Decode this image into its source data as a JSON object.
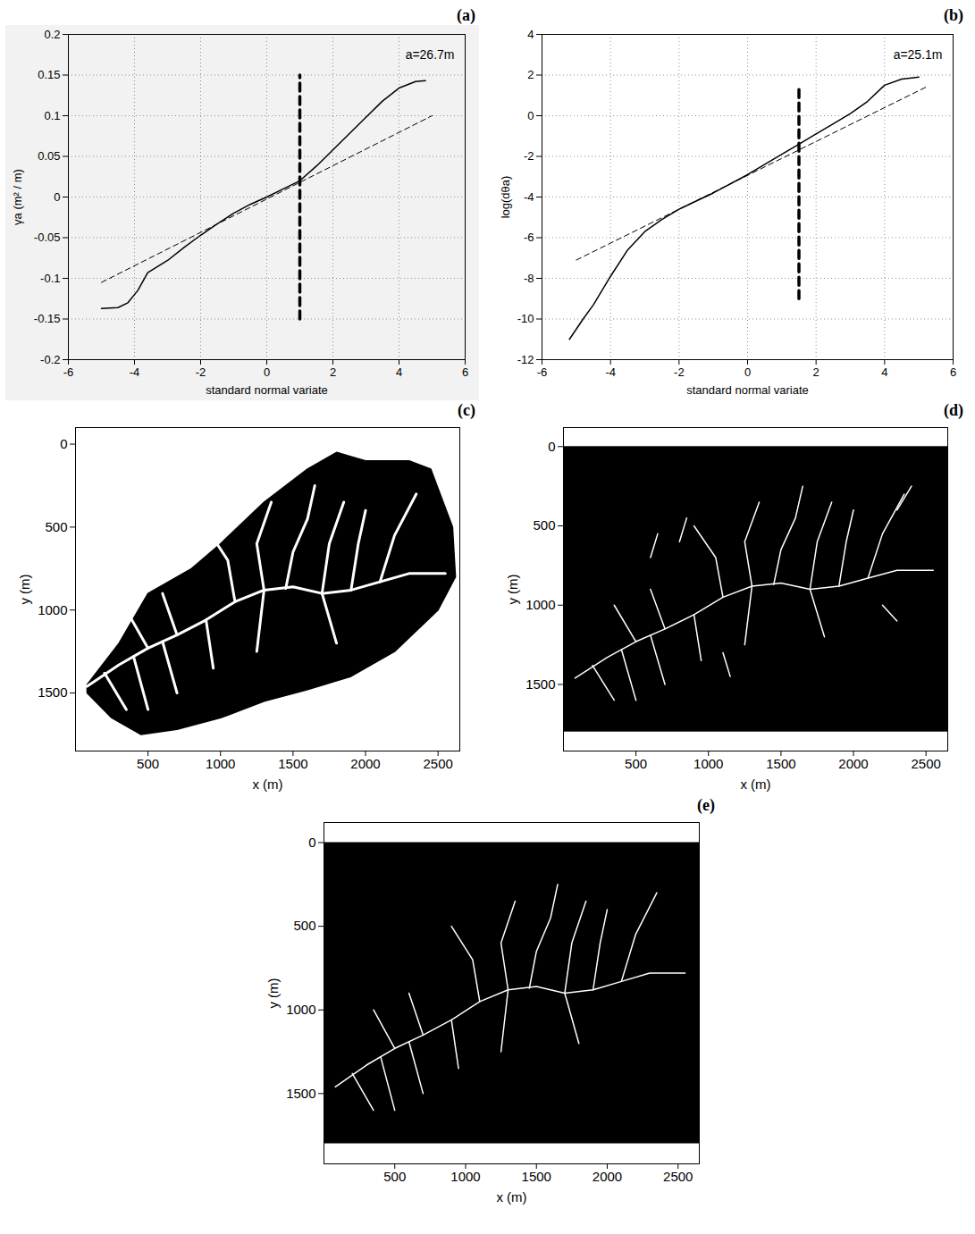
{
  "chart_data": [
    {
      "type": "line",
      "title": "(a)",
      "xlabel": "standard normal variate",
      "ylabel": "γa (m² / m)",
      "annotation": "a=26.7m",
      "grid": true,
      "xlim": [
        -6,
        6
      ],
      "xticks": [
        -6,
        -4,
        -2,
        0,
        2,
        4,
        6
      ],
      "ylim": [
        -0.2,
        0.2
      ],
      "yticks": [
        -0.2,
        -0.15,
        -0.1,
        -0.05,
        0,
        0.05,
        0.1,
        0.15,
        0.2
      ],
      "series": [
        {
          "color": "#000000",
          "line_style": "solid",
          "x": [
            -5,
            -4.5,
            -4.2,
            -3.9,
            -3.6,
            -3,
            -2.5,
            -2,
            -1.5,
            -1,
            -0.5,
            0,
            0.5,
            1,
            1.5,
            2,
            2.5,
            3,
            3.5,
            4,
            4.5,
            4.8
          ],
          "values": [
            -0.137,
            -0.136,
            -0.13,
            -0.115,
            -0.093,
            -0.078,
            -0.062,
            -0.047,
            -0.033,
            -0.02,
            -0.009,
            0,
            0.01,
            0.02,
            0.038,
            0.058,
            0.078,
            0.098,
            0.118,
            0.134,
            0.142,
            0.143
          ]
        },
        {
          "color": "#000000",
          "line_style": "dashed",
          "x": [
            -5,
            5
          ],
          "values": [
            -0.105,
            0.1
          ]
        },
        {
          "color": "#000000",
          "line_style": "thick-dashed",
          "x": [
            1,
            1
          ],
          "values": [
            -0.15,
            0.15
          ]
        }
      ]
    },
    {
      "type": "line",
      "title": "(b)",
      "xlabel": "standard normal variate",
      "ylabel": "log(dθa)",
      "annotation": "a=25.1m",
      "grid": true,
      "xlim": [
        -6,
        6
      ],
      "xticks": [
        -6,
        -4,
        -2,
        0,
        2,
        4,
        6
      ],
      "ylim": [
        -12,
        4
      ],
      "yticks": [
        -12,
        -10,
        -8,
        -6,
        -4,
        -2,
        0,
        2,
        4
      ],
      "series": [
        {
          "color": "#000000",
          "line_style": "solid",
          "x": [
            -5.2,
            -4.8,
            -4.5,
            -4,
            -3.5,
            -3,
            -2.5,
            -2,
            -1.5,
            -1,
            0,
            1,
            1.5,
            2,
            2.5,
            3,
            3.5,
            4,
            4.5,
            5
          ],
          "values": [
            -11,
            -10,
            -9.3,
            -7.9,
            -6.6,
            -5.7,
            -5.1,
            -4.6,
            -4.2,
            -3.8,
            -2.9,
            -1.9,
            -1.4,
            -0.9,
            -0.4,
            0.1,
            0.7,
            1.5,
            1.8,
            1.9
          ]
        },
        {
          "color": "#000000",
          "line_style": "dashed",
          "x": [
            -5,
            5.2
          ],
          "values": [
            -7.1,
            1.4
          ]
        },
        {
          "color": "#000000",
          "line_style": "thick-dashed",
          "x": [
            1.5,
            1.5
          ],
          "values": [
            -9,
            1.5
          ]
        }
      ]
    },
    {
      "type": "map",
      "title": "(c)",
      "xlabel": "x (m)",
      "ylabel": "y (m)",
      "xlim": [
        0,
        2650
      ],
      "xticks": [
        500,
        1000,
        1500,
        2000,
        2500
      ],
      "ylim": [
        1850,
        -100
      ],
      "yticks": [
        0,
        500,
        1000,
        1500
      ],
      "color": "#ffffff",
      "basin_outline": [
        [
          80,
          1450
        ],
        [
          300,
          1200
        ],
        [
          500,
          900
        ],
        [
          800,
          750
        ],
        [
          1000,
          600
        ],
        [
          1300,
          350
        ],
        [
          1600,
          150
        ],
        [
          1800,
          50
        ],
        [
          2000,
          100
        ],
        [
          2300,
          100
        ],
        [
          2450,
          150
        ],
        [
          2600,
          500
        ],
        [
          2620,
          800
        ],
        [
          2500,
          1000
        ],
        [
          2200,
          1250
        ],
        [
          1900,
          1400
        ],
        [
          1600,
          1480
        ],
        [
          1300,
          1550
        ],
        [
          1000,
          1650
        ],
        [
          700,
          1720
        ],
        [
          450,
          1750
        ],
        [
          250,
          1650
        ],
        [
          80,
          1500
        ]
      ],
      "channels": [
        [
          [
            80,
            1460
          ],
          [
            300,
            1330
          ],
          [
            500,
            1230
          ],
          [
            700,
            1150
          ],
          [
            900,
            1060
          ],
          [
            1100,
            950
          ],
          [
            1300,
            880
          ],
          [
            1500,
            860
          ],
          [
            1700,
            900
          ],
          [
            1900,
            880
          ],
          [
            2100,
            830
          ],
          [
            2300,
            780
          ],
          [
            2550,
            780
          ]
        ],
        [
          [
            1450,
            870
          ],
          [
            1500,
            650
          ],
          [
            1600,
            450
          ],
          [
            1650,
            250
          ]
        ],
        [
          [
            1100,
            950
          ],
          [
            1050,
            700
          ],
          [
            900,
            500
          ]
        ],
        [
          [
            700,
            1150
          ],
          [
            600,
            900
          ]
        ],
        [
          [
            500,
            1230
          ],
          [
            350,
            1000
          ]
        ],
        [
          [
            1300,
            880
          ],
          [
            1250,
            600
          ],
          [
            1350,
            350
          ]
        ],
        [
          [
            2100,
            830
          ],
          [
            2200,
            550
          ],
          [
            2350,
            300
          ]
        ],
        [
          [
            1900,
            880
          ],
          [
            1950,
            600
          ],
          [
            2000,
            400
          ]
        ],
        [
          [
            1700,
            900
          ],
          [
            1750,
            600
          ],
          [
            1850,
            350
          ]
        ],
        [
          [
            600,
            1190
          ],
          [
            700,
            1500
          ]
        ],
        [
          [
            900,
            1060
          ],
          [
            950,
            1350
          ]
        ],
        [
          [
            1300,
            880
          ],
          [
            1250,
            1250
          ]
        ],
        [
          [
            1700,
            900
          ],
          [
            1800,
            1200
          ]
        ],
        [
          [
            400,
            1280
          ],
          [
            500,
            1600
          ]
        ],
        [
          [
            200,
            1380
          ],
          [
            350,
            1600
          ]
        ]
      ]
    },
    {
      "type": "map",
      "title": "(d)",
      "xlabel": "x (m)",
      "ylabel": "y (m)",
      "xlim": [
        0,
        2650
      ],
      "xticks": [
        500,
        1000,
        1500,
        2000,
        2500
      ],
      "ylim": [
        1920,
        -120
      ],
      "yticks": [
        0,
        500,
        1000,
        1500
      ],
      "color": "#ffffff",
      "image_extent": {
        "x": [
          0,
          2650
        ],
        "y": [
          0,
          1800
        ]
      },
      "channels": [
        [
          [
            80,
            1460
          ],
          [
            300,
            1330
          ],
          [
            500,
            1230
          ],
          [
            700,
            1150
          ],
          [
            900,
            1060
          ],
          [
            1100,
            950
          ],
          [
            1300,
            880
          ],
          [
            1500,
            860
          ],
          [
            1700,
            900
          ],
          [
            1900,
            880
          ],
          [
            2100,
            830
          ],
          [
            2300,
            780
          ],
          [
            2550,
            780
          ]
        ],
        [
          [
            1450,
            870
          ],
          [
            1500,
            650
          ],
          [
            1600,
            450
          ],
          [
            1650,
            250
          ]
        ],
        [
          [
            1100,
            950
          ],
          [
            1050,
            700
          ],
          [
            900,
            500
          ]
        ],
        [
          [
            700,
            1150
          ],
          [
            600,
            900
          ]
        ],
        [
          [
            500,
            1230
          ],
          [
            350,
            1000
          ]
        ],
        [
          [
            1300,
            880
          ],
          [
            1250,
            600
          ],
          [
            1350,
            350
          ]
        ],
        [
          [
            2100,
            830
          ],
          [
            2200,
            550
          ],
          [
            2350,
            300
          ]
        ],
        [
          [
            1900,
            880
          ],
          [
            1950,
            600
          ],
          [
            2000,
            400
          ]
        ],
        [
          [
            1700,
            900
          ],
          [
            1750,
            600
          ],
          [
            1850,
            350
          ]
        ],
        [
          [
            600,
            1190
          ],
          [
            700,
            1500
          ]
        ],
        [
          [
            900,
            1060
          ],
          [
            950,
            1350
          ]
        ],
        [
          [
            1300,
            880
          ],
          [
            1250,
            1250
          ]
        ],
        [
          [
            1700,
            900
          ],
          [
            1800,
            1200
          ]
        ],
        [
          [
            400,
            1280
          ],
          [
            500,
            1600
          ]
        ],
        [
          [
            200,
            1380
          ],
          [
            350,
            1600
          ]
        ],
        [
          [
            800,
            600
          ],
          [
            850,
            450
          ]
        ],
        [
          [
            2300,
            400
          ],
          [
            2400,
            250
          ]
        ],
        [
          [
            1100,
            1300
          ],
          [
            1150,
            1450
          ]
        ],
        [
          [
            2200,
            1000
          ],
          [
            2300,
            1100
          ]
        ],
        [
          [
            600,
            700
          ],
          [
            650,
            550
          ]
        ]
      ]
    },
    {
      "type": "map",
      "title": "(e)",
      "xlabel": "x (m)",
      "ylabel": "y (m)",
      "xlim": [
        0,
        2650
      ],
      "xticks": [
        500,
        1000,
        1500,
        2000,
        2500
      ],
      "ylim": [
        1920,
        -120
      ],
      "yticks": [
        0,
        500,
        1000,
        1500
      ],
      "color": "#ffffff",
      "image_extent": {
        "x": [
          0,
          2650
        ],
        "y": [
          0,
          1800
        ]
      },
      "channels": [
        [
          [
            80,
            1460
          ],
          [
            300,
            1330
          ],
          [
            500,
            1230
          ],
          [
            700,
            1150
          ],
          [
            900,
            1060
          ],
          [
            1100,
            950
          ],
          [
            1300,
            880
          ],
          [
            1500,
            860
          ],
          [
            1700,
            900
          ],
          [
            1900,
            880
          ],
          [
            2100,
            830
          ],
          [
            2300,
            780
          ],
          [
            2550,
            780
          ]
        ],
        [
          [
            1450,
            870
          ],
          [
            1500,
            650
          ],
          [
            1600,
            450
          ],
          [
            1650,
            250
          ]
        ],
        [
          [
            1100,
            950
          ],
          [
            1050,
            700
          ],
          [
            900,
            500
          ]
        ],
        [
          [
            700,
            1150
          ],
          [
            600,
            900
          ]
        ],
        [
          [
            500,
            1230
          ],
          [
            350,
            1000
          ]
        ],
        [
          [
            1300,
            880
          ],
          [
            1250,
            600
          ],
          [
            1350,
            350
          ]
        ],
        [
          [
            2100,
            830
          ],
          [
            2200,
            550
          ],
          [
            2350,
            300
          ]
        ],
        [
          [
            1900,
            880
          ],
          [
            1950,
            600
          ],
          [
            2000,
            400
          ]
        ],
        [
          [
            1700,
            900
          ],
          [
            1750,
            600
          ],
          [
            1850,
            350
          ]
        ],
        [
          [
            600,
            1190
          ],
          [
            700,
            1500
          ]
        ],
        [
          [
            900,
            1060
          ],
          [
            950,
            1350
          ]
        ],
        [
          [
            1300,
            880
          ],
          [
            1250,
            1250
          ]
        ],
        [
          [
            1700,
            900
          ],
          [
            1800,
            1200
          ]
        ],
        [
          [
            400,
            1280
          ],
          [
            500,
            1600
          ]
        ],
        [
          [
            200,
            1380
          ],
          [
            350,
            1600
          ]
        ]
      ]
    }
  ]
}
